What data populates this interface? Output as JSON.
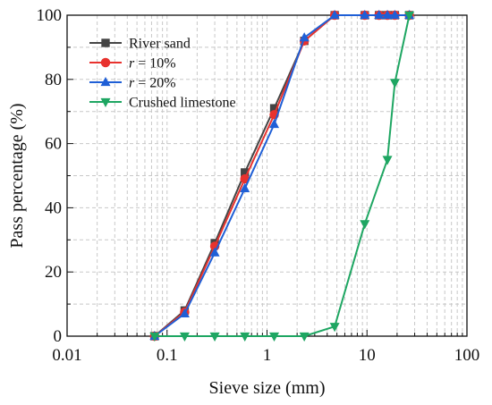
{
  "chart_data": {
    "type": "line",
    "xlabel": "Sieve size (mm)",
    "ylabel": "Pass percentage (%)",
    "xscale": "log",
    "xlim": [
      0.01,
      100
    ],
    "ylim": [
      0,
      100
    ],
    "x_ticks": [
      0.01,
      0.1,
      1,
      10,
      100
    ],
    "x_tick_labels": [
      "0.01",
      "0.1",
      "1",
      "10",
      "100"
    ],
    "y_ticks": [
      0,
      20,
      40,
      60,
      80,
      100
    ],
    "y_tick_labels": [
      "0",
      "20",
      "40",
      "60",
      "80",
      "100"
    ],
    "grid": true,
    "legend_position": "top-left",
    "series": [
      {
        "name": "River sand",
        "color": "#444444",
        "marker": "square",
        "x": [
          0.075,
          0.15,
          0.3,
          0.6,
          1.18,
          2.36,
          4.75,
          9.5,
          13.2,
          16,
          19,
          26.5
        ],
        "y": [
          0,
          8,
          29,
          51,
          71,
          92,
          100,
          100,
          100,
          100,
          100,
          100
        ]
      },
      {
        "name": "r = 10%",
        "color": "#e8322e",
        "marker": "circle",
        "x": [
          0.075,
          0.15,
          0.3,
          0.6,
          1.18,
          2.36,
          4.75,
          9.5,
          13.2,
          16,
          19,
          26.5
        ],
        "y": [
          0,
          7.5,
          28,
          49,
          69,
          92,
          100,
          100,
          100,
          100,
          100,
          100
        ]
      },
      {
        "name": "r = 20%",
        "color": "#1f5fd6",
        "marker": "triangle-up",
        "x": [
          0.075,
          0.15,
          0.3,
          0.6,
          1.18,
          2.36,
          4.75,
          9.5,
          13.2,
          16,
          19,
          26.5
        ],
        "y": [
          0,
          7,
          26,
          46,
          66,
          93,
          100,
          100,
          100,
          100,
          100,
          100
        ]
      },
      {
        "name": "Crushed limestone",
        "color": "#1ea662",
        "marker": "triangle-down",
        "x": [
          0.075,
          0.15,
          0.3,
          0.6,
          1.18,
          2.36,
          4.75,
          9.5,
          16,
          19,
          26.5
        ],
        "y": [
          0,
          0,
          0,
          0,
          0,
          0,
          3,
          35,
          55,
          79,
          100
        ]
      }
    ]
  }
}
